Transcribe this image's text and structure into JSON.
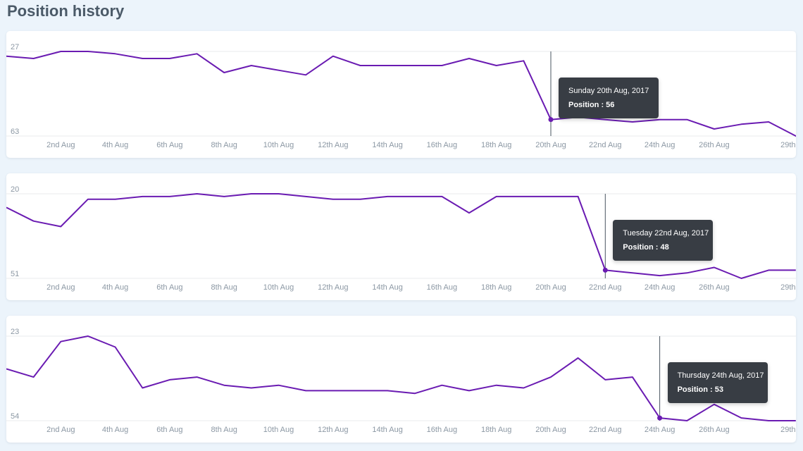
{
  "page": {
    "title": "Position history"
  },
  "theme": {
    "line": "#6a1bb2",
    "grid": "#e8ebee",
    "axis_text": "#8c98a4",
    "cursor": "#4a5560",
    "tooltip_bg": "#383d44"
  },
  "chart_data": [
    {
      "type": "line",
      "x": [
        "2017-07-31",
        "2017-08-01",
        "2017-08-02",
        "2017-08-03",
        "2017-08-04",
        "2017-08-05",
        "2017-08-06",
        "2017-08-07",
        "2017-08-08",
        "2017-08-09",
        "2017-08-10",
        "2017-08-11",
        "2017-08-12",
        "2017-08-13",
        "2017-08-14",
        "2017-08-15",
        "2017-08-16",
        "2017-08-17",
        "2017-08-18",
        "2017-08-19",
        "2017-08-20",
        "2017-08-21",
        "2017-08-22",
        "2017-08-23",
        "2017-08-24",
        "2017-08-25",
        "2017-08-26",
        "2017-08-27",
        "2017-08-28",
        "2017-08-29",
        "2017-08-30"
      ],
      "values": [
        29,
        30,
        27,
        27,
        28,
        30,
        30,
        28,
        36,
        33,
        35,
        37,
        29,
        33,
        33,
        33,
        33,
        30,
        33,
        31,
        56,
        55,
        56,
        57,
        56,
        56,
        60,
        58,
        57,
        63,
        63
      ],
      "xtick_labels": [
        "2nd Aug",
        "4th Aug",
        "6th Aug",
        "8th Aug",
        "10th Aug",
        "12th Aug",
        "14th Aug",
        "16th Aug",
        "18th Aug",
        "20th Aug",
        "22nd Aug",
        "24th Aug",
        "26th Aug",
        "29th Aug"
      ],
      "y_ticks": [
        27,
        63
      ],
      "ylim": [
        27,
        63
      ],
      "y_inverted": true,
      "grid": true,
      "hover": {
        "date": "Sunday 20th Aug, 2017",
        "label": "Position : 56",
        "x": "2017-08-20",
        "value": 56
      }
    },
    {
      "type": "line",
      "x": [
        "2017-07-31",
        "2017-08-01",
        "2017-08-02",
        "2017-08-03",
        "2017-08-04",
        "2017-08-05",
        "2017-08-06",
        "2017-08-07",
        "2017-08-08",
        "2017-08-09",
        "2017-08-10",
        "2017-08-11",
        "2017-08-12",
        "2017-08-13",
        "2017-08-14",
        "2017-08-15",
        "2017-08-16",
        "2017-08-17",
        "2017-08-18",
        "2017-08-19",
        "2017-08-20",
        "2017-08-21",
        "2017-08-22",
        "2017-08-23",
        "2017-08-24",
        "2017-08-25",
        "2017-08-26",
        "2017-08-27",
        "2017-08-28",
        "2017-08-29"
      ],
      "values": [
        25,
        30,
        32,
        22,
        22,
        21,
        21,
        20,
        21,
        20,
        20,
        21,
        22,
        22,
        21,
        21,
        21,
        27,
        21,
        21,
        21,
        21,
        48,
        49,
        50,
        49,
        47,
        51,
        48,
        48
      ],
      "xtick_labels": [
        "2nd Aug",
        "4th Aug",
        "6th Aug",
        "8th Aug",
        "10th Aug",
        "12th Aug",
        "14th Aug",
        "16th Aug",
        "18th Aug",
        "20th Aug",
        "22nd Aug",
        "24th Aug",
        "26th Aug",
        "29th Aug"
      ],
      "y_ticks": [
        20,
        51
      ],
      "ylim": [
        20,
        51
      ],
      "y_inverted": true,
      "grid": true,
      "hover": {
        "date": "Tuesday 22nd Aug, 2017",
        "label": "Position : 48",
        "x": "2017-08-22",
        "value": 48
      }
    },
    {
      "type": "line",
      "x": [
        "2017-07-31",
        "2017-08-01",
        "2017-08-02",
        "2017-08-03",
        "2017-08-04",
        "2017-08-05",
        "2017-08-06",
        "2017-08-07",
        "2017-08-08",
        "2017-08-09",
        "2017-08-10",
        "2017-08-11",
        "2017-08-12",
        "2017-08-13",
        "2017-08-14",
        "2017-08-15",
        "2017-08-16",
        "2017-08-17",
        "2017-08-18",
        "2017-08-19",
        "2017-08-20",
        "2017-08-21",
        "2017-08-22",
        "2017-08-23",
        "2017-08-24",
        "2017-08-25",
        "2017-08-26",
        "2017-08-27",
        "2017-08-28",
        "2017-08-29"
      ],
      "values": [
        35,
        38,
        25,
        23,
        27,
        42,
        39,
        38,
        41,
        42,
        41,
        43,
        43,
        43,
        43,
        44,
        41,
        43,
        41,
        42,
        38,
        31,
        39,
        38,
        53,
        54,
        48,
        53,
        54,
        54
      ],
      "xtick_labels": [
        "2nd Aug",
        "4th Aug",
        "6th Aug",
        "8th Aug",
        "10th Aug",
        "12th Aug",
        "14th Aug",
        "16th Aug",
        "18th Aug",
        "20th Aug",
        "22nd Aug",
        "24th Aug",
        "26th Aug",
        "29th Aug"
      ],
      "y_ticks": [
        23,
        54
      ],
      "ylim": [
        23,
        54
      ],
      "y_inverted": true,
      "grid": true,
      "hover": {
        "date": "Thursday 24th Aug, 2017",
        "label": "Position : 53",
        "x": "2017-08-24",
        "value": 53
      }
    }
  ]
}
